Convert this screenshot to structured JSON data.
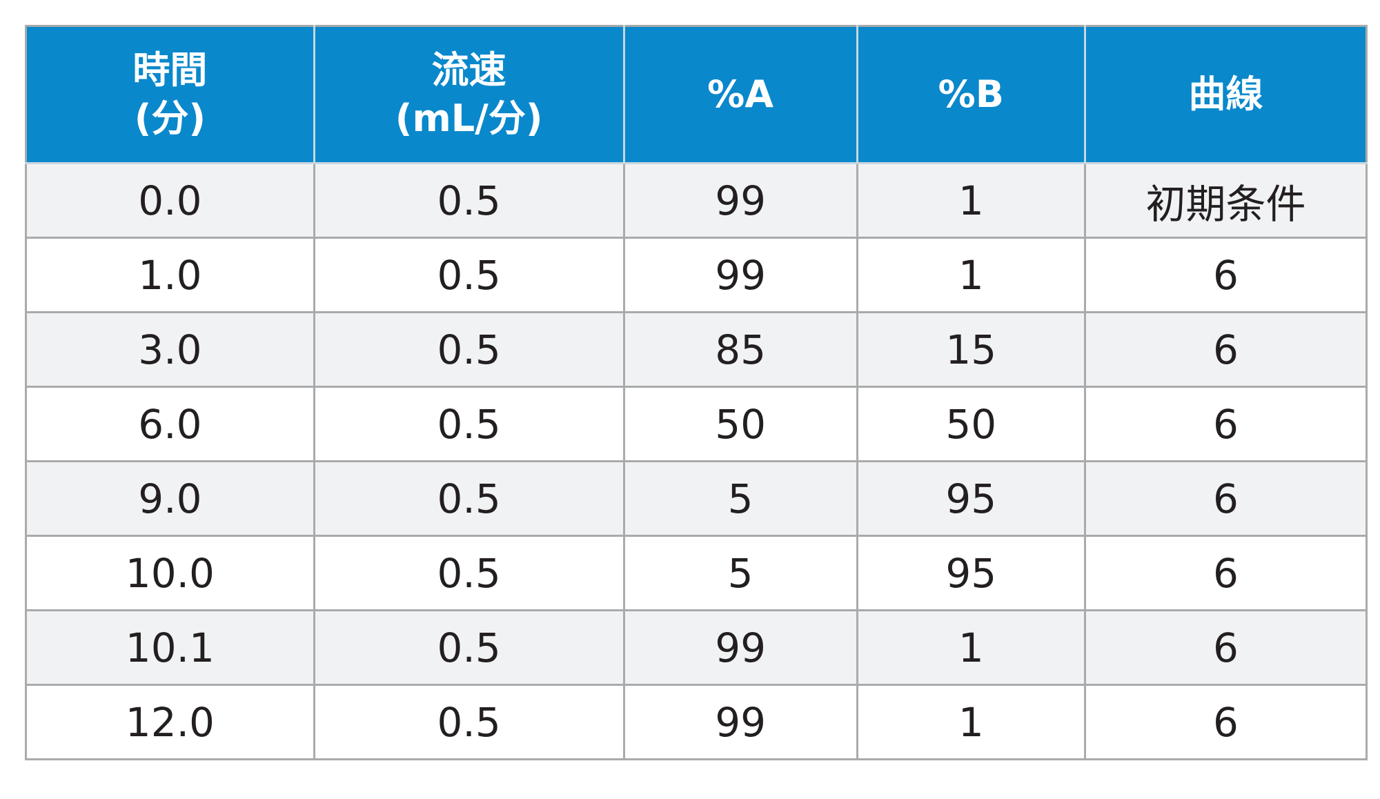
{
  "table": {
    "headers": [
      {
        "line1": "時間",
        "line2": "(分)"
      },
      {
        "line1": "流速",
        "line2": "(mL/分)"
      },
      {
        "line1": "%A",
        "line2": ""
      },
      {
        "line1": "%B",
        "line2": ""
      },
      {
        "line1": "曲線",
        "line2": ""
      }
    ],
    "rows": [
      [
        "0.0",
        "0.5",
        "99",
        "1",
        "初期条件"
      ],
      [
        "1.0",
        "0.5",
        "99",
        "1",
        "6"
      ],
      [
        "3.0",
        "0.5",
        "85",
        "15",
        "6"
      ],
      [
        "6.0",
        "0.5",
        "50",
        "50",
        "6"
      ],
      [
        "9.0",
        "0.5",
        "5",
        "95",
        "6"
      ],
      [
        "10.0",
        "0.5",
        "5",
        "95",
        "6"
      ],
      [
        "10.1",
        "0.5",
        "99",
        "1",
        "6"
      ],
      [
        "12.0",
        "0.5",
        "99",
        "1",
        "6"
      ]
    ]
  },
  "colors": {
    "header_background": "#0a88cc",
    "header_text": "#ffffff",
    "row_stripe": "#f1f2f4",
    "row_plain": "#ffffff",
    "grid": "#a9aaab",
    "body_text": "#231f20"
  }
}
